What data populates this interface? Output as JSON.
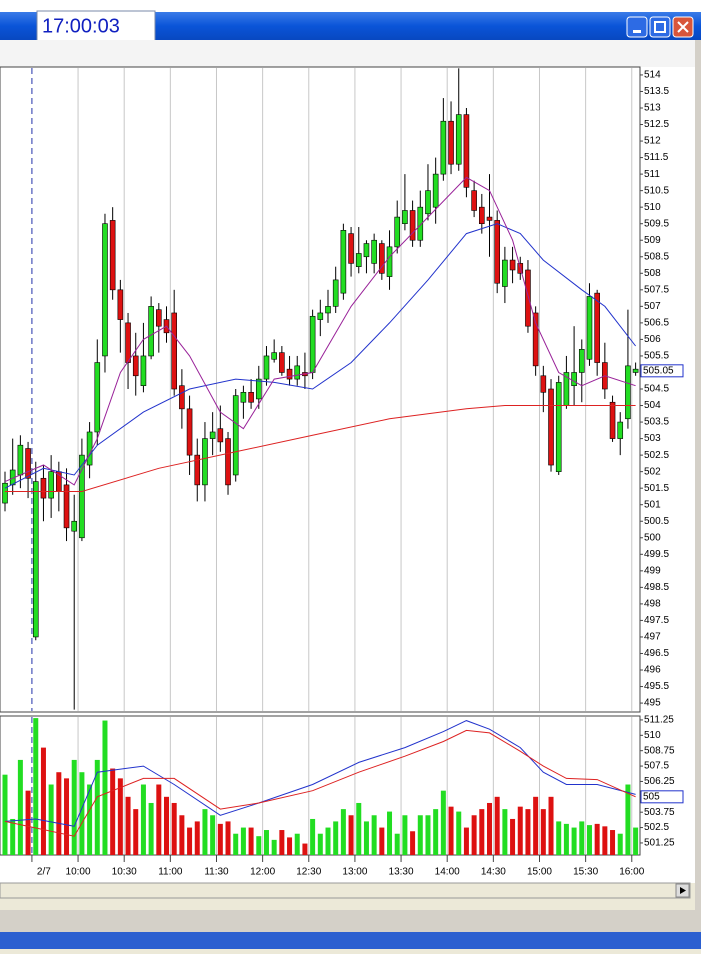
{
  "window": {
    "clock": "17:00:03"
  },
  "chart_data": [
    {
      "type": "candlestick",
      "up_color": "#22dd22",
      "down_color": "#dd1111",
      "open": [
        501.05,
        501.6,
        501.9,
        502.7,
        497.0,
        501.8,
        501.2,
        502.0,
        501.6,
        500.2,
        500.0,
        502.2,
        503.2,
        505.5,
        509.6,
        507.5,
        506.5,
        505.5,
        504.6,
        505.5,
        506.9,
        506.6,
        506.8,
        504.6,
        503.9,
        502.5,
        501.6,
        503.0,
        503.3,
        503.0,
        501.9,
        504.1,
        504.4,
        504.2,
        504.8,
        505.4,
        505.6,
        505.1,
        504.8,
        505.0,
        505.0,
        506.6,
        506.8,
        507.0,
        507.4,
        509.2,
        508.2,
        508.5,
        508.3,
        508.9,
        507.9,
        508.8,
        509.5,
        509.9,
        509.0,
        509.8,
        510.0,
        511.0,
        512.6,
        511.3,
        512.8,
        510.5,
        510.0,
        509.7,
        509.6,
        507.6,
        508.4,
        508.3,
        508.1,
        506.8,
        504.9,
        504.5,
        502.0,
        504.0,
        504.6,
        505.0,
        505.4,
        507.4,
        505.3,
        504.1,
        503.0,
        503.6,
        505.0
      ],
      "high": [
        502.0,
        503.0,
        503.1,
        502.9,
        502.3,
        502.2,
        502.5,
        502.3,
        502.1,
        501.3,
        503.0,
        503.5,
        506.0,
        509.8,
        510.0,
        507.8,
        506.8,
        506.2,
        506.5,
        507.3,
        507.1,
        507.0,
        507.5,
        505.1,
        504.3,
        503.0,
        503.5,
        503.8,
        504.0,
        503.2,
        504.5,
        504.6,
        504.8,
        505.2,
        505.8,
        506.0,
        505.8,
        505.5,
        505.5,
        505.6,
        506.9,
        507.2,
        507.5,
        508.2,
        509.5,
        509.4,
        509.4,
        509.0,
        509.2,
        509.0,
        509.3,
        510.2,
        511.0,
        510.2,
        510.5,
        511.3,
        511.5,
        513.3,
        513.2,
        514.2,
        513.0,
        510.8,
        510.4,
        511.0,
        509.9,
        508.8,
        508.8,
        508.5,
        508.4,
        507.0,
        505.2,
        504.8,
        504.9,
        505.5,
        506.4,
        506.0,
        507.7,
        507.5,
        505.9,
        504.3,
        503.8,
        506.9,
        505.3
      ],
      "low": [
        500.8,
        501.3,
        501.5,
        501.2,
        496.9,
        500.5,
        500.6,
        500.8,
        499.9,
        494.8,
        499.9,
        501.8,
        502.8,
        505.0,
        507.2,
        505.6,
        504.5,
        504.3,
        504.4,
        505.4,
        505.6,
        505.9,
        504.3,
        503.3,
        501.9,
        501.1,
        501.1,
        502.5,
        502.6,
        501.3,
        501.7,
        503.6,
        503.9,
        503.9,
        504.6,
        505.3,
        504.9,
        504.6,
        504.6,
        504.5,
        504.8,
        506.1,
        506.5,
        506.8,
        507.2,
        507.9,
        508.0,
        508.0,
        508.0,
        507.8,
        507.5,
        508.6,
        509.3,
        508.8,
        508.8,
        509.6,
        509.5,
        510.8,
        511.0,
        511.1,
        510.3,
        509.7,
        509.2,
        508.5,
        507.4,
        507.1,
        507.7,
        507.8,
        506.2,
        504.9,
        503.8,
        502.0,
        501.9,
        503.9,
        504.0,
        504.1,
        505.2,
        504.9,
        504.2,
        502.9,
        502.5,
        503.3,
        504.9
      ],
      "close": [
        501.65,
        502.05,
        502.8,
        501.8,
        501.7,
        501.2,
        502.0,
        501.4,
        500.3,
        500.5,
        502.5,
        503.2,
        505.3,
        509.5,
        507.5,
        506.6,
        505.3,
        504.9,
        505.5,
        507.0,
        506.4,
        506.2,
        504.5,
        503.9,
        502.5,
        501.6,
        503.0,
        503.2,
        502.9,
        501.6,
        504.3,
        504.4,
        504.1,
        504.8,
        505.5,
        505.6,
        505.0,
        504.8,
        505.2,
        504.9,
        506.7,
        506.8,
        507.0,
        507.8,
        509.3,
        508.3,
        508.6,
        508.9,
        509.0,
        508.0,
        508.8,
        509.7,
        509.9,
        509.0,
        510.0,
        510.5,
        511.0,
        512.6,
        511.3,
        512.8,
        510.6,
        509.9,
        509.5,
        509.6,
        507.7,
        508.4,
        508.1,
        508.0,
        506.4,
        505.2,
        504.4,
        502.2,
        504.7,
        505.0,
        505.0,
        505.7,
        507.3,
        505.3,
        504.5,
        503.0,
        503.5,
        505.2,
        505.1
      ],
      "xlim": [
        -0.65,
        82.57
      ],
      "ylim": [
        494.73,
        514.24
      ],
      "yticks": [
        495,
        495.5,
        496,
        496.5,
        497,
        497.5,
        498,
        498.5,
        499,
        499.5,
        500,
        500.5,
        501,
        501.5,
        502,
        502.5,
        503,
        503.5,
        504,
        504.5,
        505,
        505.5,
        506,
        506.5,
        507,
        507.5,
        508,
        508.5,
        509,
        509.5,
        510,
        510.5,
        511,
        511.5,
        512,
        512.5,
        513,
        513.5,
        514
      ],
      "last_value": 505.05,
      "lines": [
        {
          "color": "#dd2222",
          "x": [
            0,
            10,
            20,
            30,
            40,
            50,
            60,
            65,
            70,
            82
          ],
          "values": [
            501.4,
            501.4,
            502.1,
            502.6,
            503.1,
            503.6,
            503.9,
            504.0,
            504.0,
            504.0
          ]
        },
        {
          "color": "#2233cc",
          "x": [
            0,
            5,
            9,
            12,
            18,
            24,
            30,
            35,
            40,
            45,
            50,
            55,
            60,
            64,
            67,
            70,
            75,
            78,
            82
          ],
          "values": [
            501.5,
            502.1,
            501.9,
            502.8,
            503.8,
            504.5,
            504.8,
            504.7,
            504.5,
            505.3,
            506.5,
            507.8,
            509.2,
            509.5,
            509.2,
            508.4,
            507.5,
            507.0,
            505.8
          ]
        },
        {
          "color": "#992299",
          "x": [
            0,
            5,
            9,
            12,
            15,
            18,
            21,
            24,
            28,
            31,
            35,
            40,
            45,
            50,
            55,
            60,
            63,
            66,
            69,
            72,
            75,
            78,
            82
          ],
          "values": [
            501.7,
            502.2,
            501.6,
            503.0,
            505.0,
            506.0,
            506.4,
            505.5,
            503.8,
            503.3,
            504.8,
            505.0,
            507.0,
            508.5,
            509.7,
            510.9,
            510.5,
            509.0,
            506.5,
            505.0,
            504.6,
            504.9,
            504.6
          ]
        }
      ]
    },
    {
      "type": "bar",
      "values": [
        506.8,
        503.2,
        508.0,
        505.5,
        511.4,
        509.0,
        506.0,
        507.0,
        506.5,
        508.0,
        507.0,
        506.0,
        508.0,
        511.2,
        507.3,
        506.5,
        505.0,
        504.0,
        506.0,
        504.5,
        506.0,
        505.0,
        504.5,
        503.5,
        502.5,
        503.0,
        504.0,
        503.5,
        502.8,
        503.0,
        502.0,
        502.5,
        502.5,
        501.8,
        502.3,
        501.5,
        502.3,
        501.7,
        502.0,
        501.2,
        503.2,
        502.0,
        502.5,
        503.0,
        504.0,
        503.5,
        504.5,
        503.0,
        503.5,
        502.5,
        503.8,
        502.0,
        503.5,
        502.2,
        503.5,
        503.5,
        504.0,
        505.5,
        504.2,
        503.8,
        502.5,
        503.5,
        504.0,
        504.5,
        505.0,
        504.0,
        503.2,
        504.2,
        504.0,
        505.0,
        504.0,
        505.0,
        503.0,
        502.8,
        502.5,
        503.0,
        502.7,
        502.8,
        502.6,
        502.3,
        502.0,
        506.0,
        502.5
      ],
      "xlim": [
        -0.65,
        82.57
      ],
      "ylim": [
        500.27,
        511.57
      ],
      "yticks": [
        501.25,
        502.5,
        503.75,
        505,
        506.25,
        507.5,
        508.75,
        510,
        511.25
      ],
      "xticks": [
        {
          "value": 3.5,
          "label": "2/7"
        },
        {
          "value": 9.5,
          "label": "10:00"
        },
        {
          "value": 15.5,
          "label": "10:30"
        },
        {
          "value": 21.5,
          "label": "11:00"
        },
        {
          "value": 27.5,
          "label": "11:30"
        },
        {
          "value": 33.5,
          "label": "12:00"
        },
        {
          "value": 39.5,
          "label": "12:30"
        },
        {
          "value": 45.5,
          "label": "13:00"
        },
        {
          "value": 51.5,
          "label": "13:30"
        },
        {
          "value": 57.5,
          "label": "14:00"
        },
        {
          "value": 63.5,
          "label": "14:30"
        },
        {
          "value": 69.5,
          "label": "15:00"
        },
        {
          "value": 75.5,
          "label": "15:30"
        },
        {
          "value": 81.5,
          "label": "16:00"
        }
      ],
      "last_value": 505,
      "lines": [
        {
          "color": "#2233cc",
          "x": [
            0,
            4,
            9,
            12,
            18,
            22,
            28,
            33,
            40,
            46,
            52,
            57,
            60,
            63,
            67,
            70,
            73,
            77,
            82
          ],
          "values": [
            503.0,
            503.2,
            502.6,
            507.0,
            507.5,
            506.0,
            503.5,
            504.5,
            506.0,
            507.8,
            509.0,
            510.3,
            511.2,
            510.5,
            509.0,
            507.0,
            506.0,
            506.0,
            505.2
          ]
        },
        {
          "color": "#dd2222",
          "x": [
            0,
            9,
            12,
            18,
            22,
            28,
            33,
            40,
            46,
            52,
            57,
            60,
            63,
            67,
            70,
            73,
            77,
            82
          ],
          "values": [
            503.0,
            501.8,
            505.0,
            506.5,
            506.5,
            504.0,
            504.5,
            505.5,
            507.0,
            508.3,
            509.5,
            510.4,
            510.2,
            508.7,
            507.5,
            506.5,
            506.4,
            505.0
          ]
        }
      ]
    }
  ]
}
